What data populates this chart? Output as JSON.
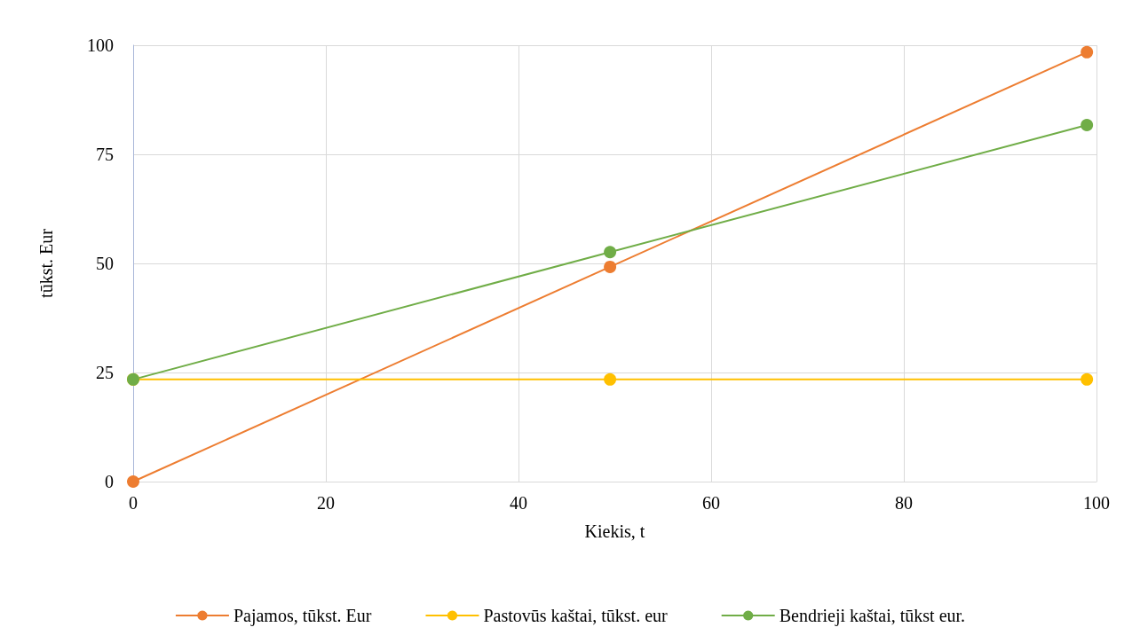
{
  "chart_data": {
    "type": "line",
    "xlabel": "Kiekis, t",
    "ylabel": "tūkst. Eur",
    "x": [
      0,
      49.5,
      99
    ],
    "series": [
      {
        "name": "Pajamos, tūkst. Eur",
        "color": "#ed7d31",
        "values": [
          0,
          49.2,
          98.4
        ]
      },
      {
        "name": "Pastovūs kaštai, tūkst. eur",
        "color": "#ffc000",
        "values": [
          23.4,
          23.4,
          23.4
        ]
      },
      {
        "name": "Bendrieji kaštai, tūkst eur.",
        "color": "#70ad47",
        "values": [
          23.4,
          52.6,
          81.7
        ]
      }
    ],
    "xlim": [
      0,
      100
    ],
    "xticks": [
      0,
      20,
      40,
      60,
      80,
      100
    ],
    "ylim": [
      0,
      100
    ],
    "yticks": [
      0,
      25,
      50,
      75,
      100
    ],
    "grid": true,
    "legend": "bottom",
    "marker": "circle",
    "line_style": "solid"
  }
}
